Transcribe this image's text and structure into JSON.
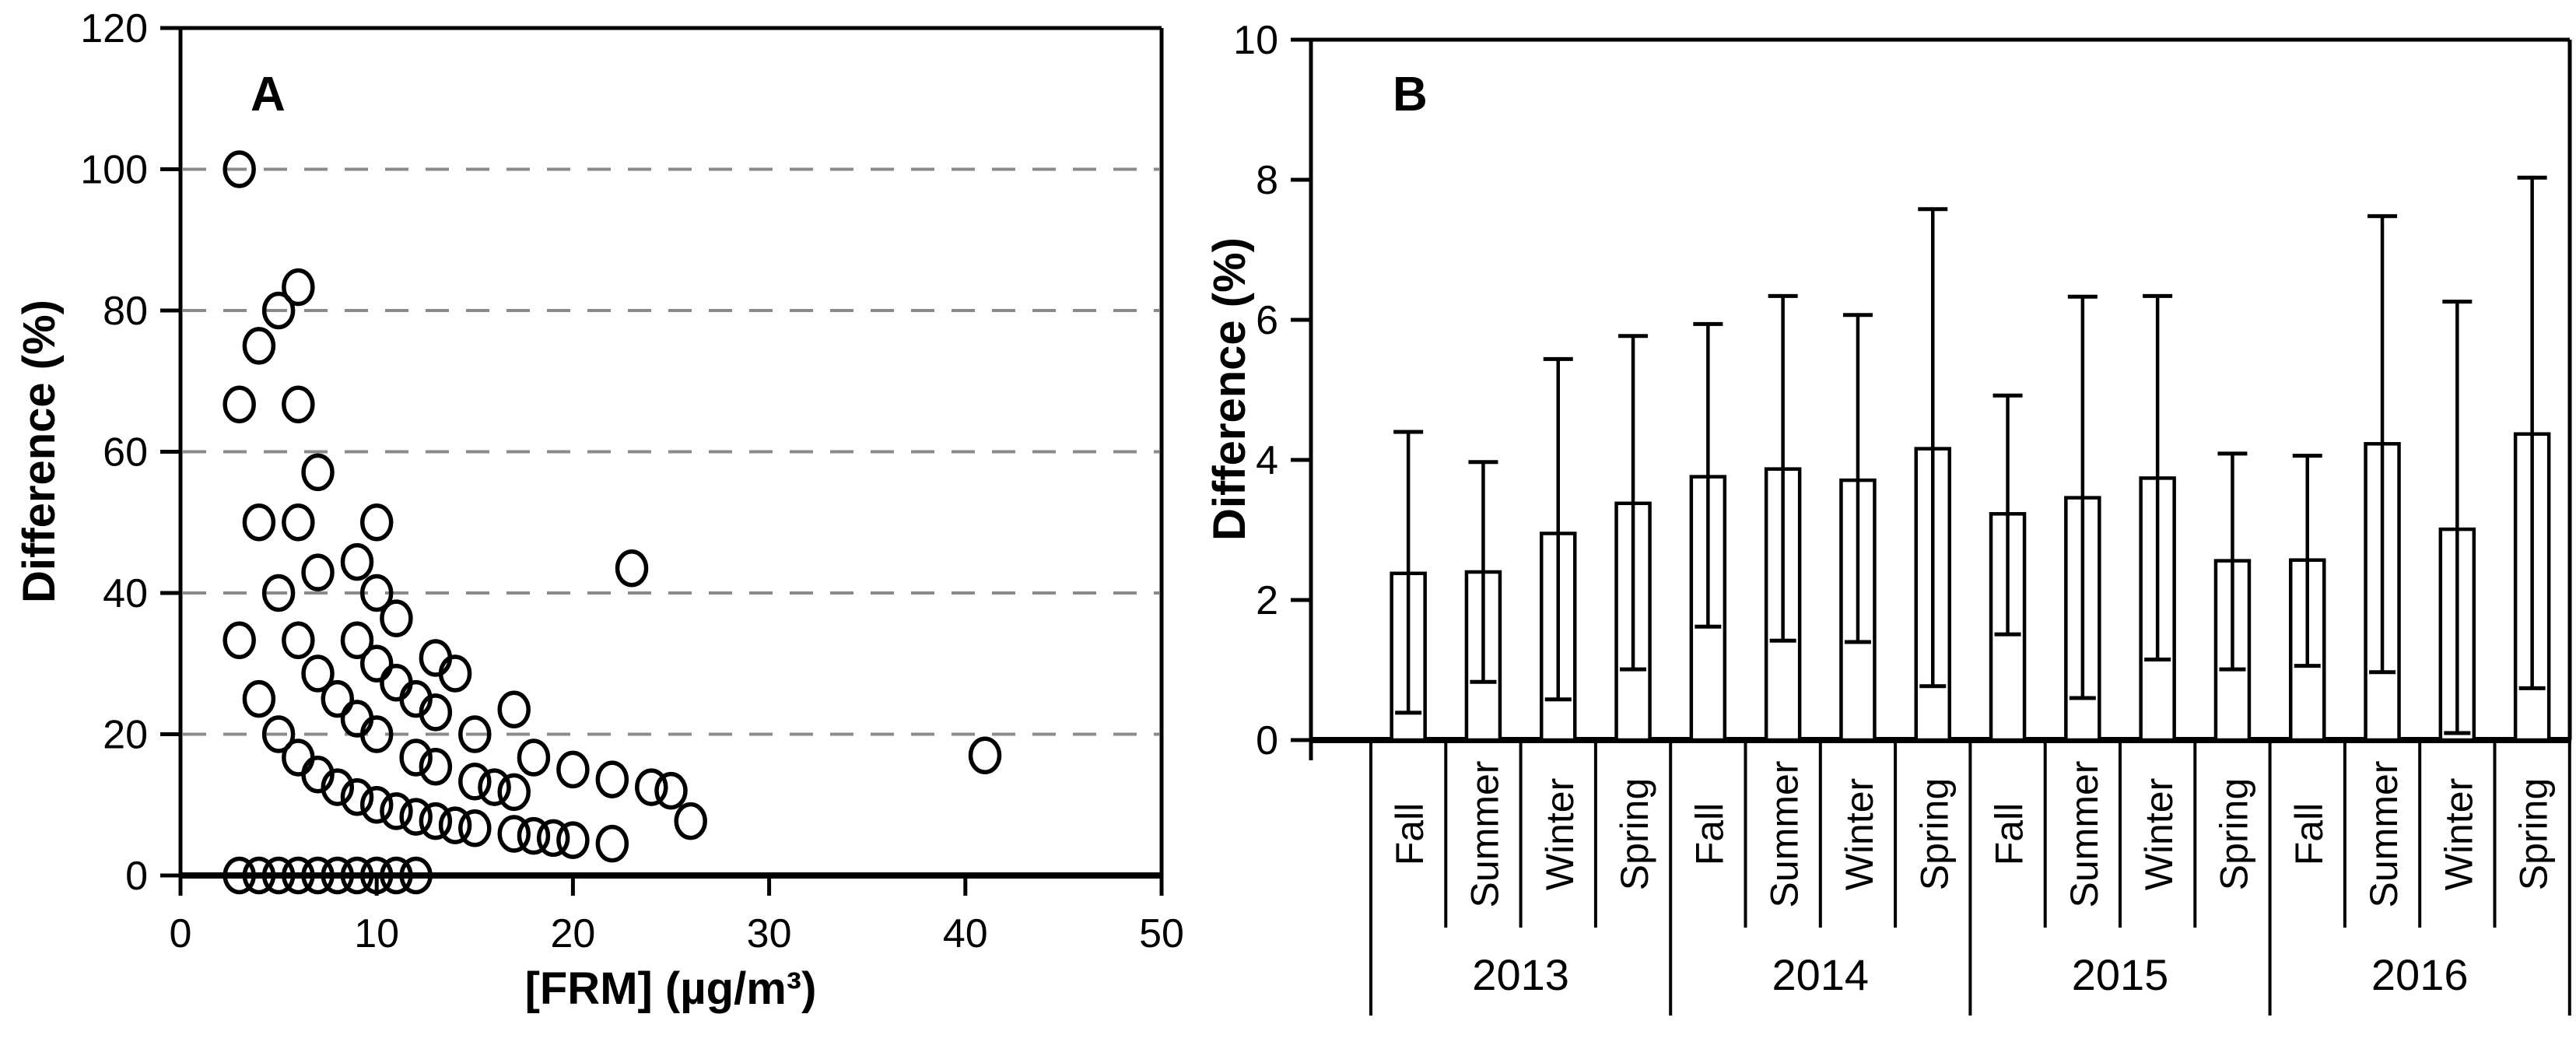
{
  "chart_data": [
    {
      "type": "scatter",
      "label": "A",
      "xlabel": "[FRM] (µg/m³)",
      "ylabel": "Difference (%)",
      "xlim": [
        0,
        50
      ],
      "ylim": [
        0,
        120
      ],
      "xticks": [
        0,
        10,
        20,
        30,
        40,
        50
      ],
      "yticks": [
        0,
        20,
        40,
        60,
        80,
        100,
        120
      ],
      "gridlines_y": [
        20,
        40,
        60,
        80,
        100
      ],
      "gridline_style": "dashed",
      "gridline_color": "#8a8a8a",
      "marker": "open-circle",
      "marker_color": "#000000",
      "points": [
        [
          3,
          0
        ],
        [
          4,
          0
        ],
        [
          5,
          0
        ],
        [
          6,
          0
        ],
        [
          7,
          0
        ],
        [
          8,
          0
        ],
        [
          9,
          0
        ],
        [
          10,
          0
        ],
        [
          11,
          0
        ],
        [
          12,
          0
        ],
        [
          3,
          33.3
        ],
        [
          4,
          25
        ],
        [
          5,
          20
        ],
        [
          6,
          16.7
        ],
        [
          7,
          14.3
        ],
        [
          8,
          12.5
        ],
        [
          9,
          11.1
        ],
        [
          10,
          10
        ],
        [
          11,
          9.1
        ],
        [
          12,
          8.3
        ],
        [
          13,
          7.7
        ],
        [
          14,
          7.1
        ],
        [
          15,
          6.7
        ],
        [
          17,
          5.9
        ],
        [
          18,
          5.6
        ],
        [
          19,
          5.3
        ],
        [
          20,
          5
        ],
        [
          22,
          4.5
        ],
        [
          3,
          66.7
        ],
        [
          4,
          50
        ],
        [
          5,
          40
        ],
        [
          6,
          33.3
        ],
        [
          7,
          28.6
        ],
        [
          8,
          25
        ],
        [
          9,
          22.2
        ],
        [
          10,
          20
        ],
        [
          12,
          16.7
        ],
        [
          13,
          15.4
        ],
        [
          15,
          13.3
        ],
        [
          16,
          12.5
        ],
        [
          17,
          11.8
        ],
        [
          26,
          7.7
        ],
        [
          3,
          100
        ],
        [
          4,
          75
        ],
        [
          6,
          50
        ],
        [
          7,
          42.9
        ],
        [
          9,
          33.3
        ],
        [
          10,
          30
        ],
        [
          11,
          27.3
        ],
        [
          12,
          25
        ],
        [
          13,
          23.1
        ],
        [
          15,
          20
        ],
        [
          18,
          16.7
        ],
        [
          20,
          15
        ],
        [
          22,
          13.6
        ],
        [
          24,
          12.5
        ],
        [
          25,
          12
        ],
        [
          5,
          80
        ],
        [
          6,
          83.3
        ],
        [
          6,
          66.7
        ],
        [
          7,
          57.1
        ],
        [
          9,
          44.4
        ],
        [
          10,
          50
        ],
        [
          10,
          40
        ],
        [
          11,
          36.4
        ],
        [
          13,
          30.8
        ],
        [
          14,
          28.6
        ],
        [
          17,
          23.5
        ],
        [
          23,
          43.5
        ],
        [
          41,
          17
        ]
      ]
    },
    {
      "type": "bar",
      "label": "B",
      "ylabel": "Difference (%)",
      "ylim": [
        0,
        10
      ],
      "yticks": [
        0,
        2,
        4,
        6,
        8,
        10
      ],
      "bar_fill": "#ffffff",
      "bar_stroke": "#000000",
      "error_bars": "asymmetric whiskers with caps",
      "groups": [
        {
          "year": "2013",
          "bars": [
            {
              "season": "Fall",
              "value": 2.38,
              "whisker_low": 0.39,
              "whisker_high": 4.4
            },
            {
              "season": "Summer",
              "value": 2.4,
              "whisker_low": 0.83,
              "whisker_high": 3.97
            },
            {
              "season": "Winter",
              "value": 2.95,
              "whisker_low": 0.58,
              "whisker_high": 5.44
            },
            {
              "season": "Spring",
              "value": 3.38,
              "whisker_low": 1.01,
              "whisker_high": 5.77
            }
          ]
        },
        {
          "year": "2014",
          "bars": [
            {
              "season": "Fall",
              "value": 3.76,
              "whisker_low": 1.62,
              "whisker_high": 5.94
            },
            {
              "season": "Summer",
              "value": 3.87,
              "whisker_low": 1.42,
              "whisker_high": 6.34
            },
            {
              "season": "Winter",
              "value": 3.71,
              "whisker_low": 1.4,
              "whisker_high": 6.07
            },
            {
              "season": "Spring",
              "value": 4.16,
              "whisker_low": 0.77,
              "whisker_high": 7.58
            }
          ]
        },
        {
          "year": "2015",
          "bars": [
            {
              "season": "Fall",
              "value": 3.23,
              "whisker_low": 1.51,
              "whisker_high": 4.92
            },
            {
              "season": "Summer",
              "value": 3.46,
              "whisker_low": 0.6,
              "whisker_high": 6.33
            },
            {
              "season": "Winter",
              "value": 3.74,
              "whisker_low": 1.15,
              "whisker_high": 6.34
            },
            {
              "season": "Spring",
              "value": 2.56,
              "whisker_low": 1.01,
              "whisker_high": 4.09
            }
          ]
        },
        {
          "year": "2016",
          "bars": [
            {
              "season": "Fall",
              "value": 2.57,
              "whisker_low": 1.06,
              "whisker_high": 4.06
            },
            {
              "season": "Summer",
              "value": 4.23,
              "whisker_low": 0.97,
              "whisker_high": 7.48
            },
            {
              "season": "Winter",
              "value": 3.01,
              "whisker_low": 0.1,
              "whisker_high": 6.26
            },
            {
              "season": "Spring",
              "value": 4.37,
              "whisker_low": 0.74,
              "whisker_high": 8.03
            }
          ]
        }
      ]
    }
  ]
}
